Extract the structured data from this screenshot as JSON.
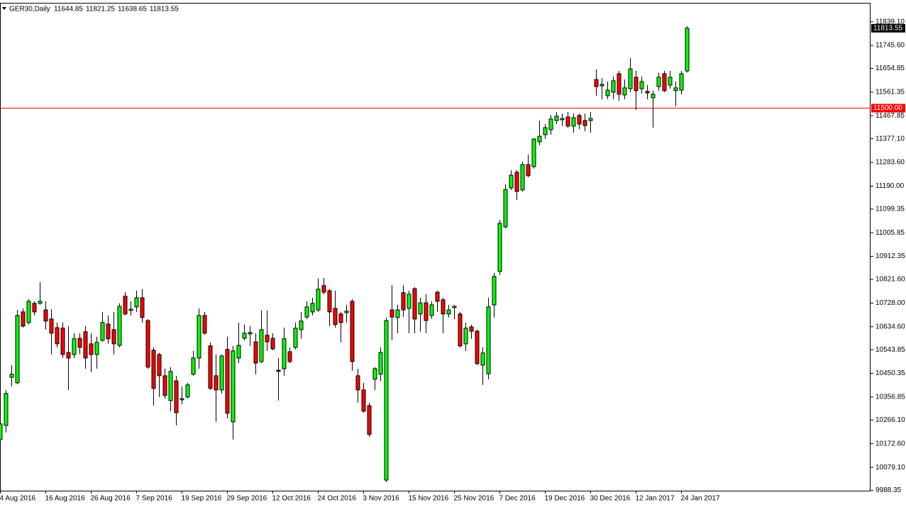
{
  "chart_data": {
    "type": "candlestick",
    "title": "GER30,Daily",
    "categories": [
      "4 Aug 2016",
      null,
      null,
      null,
      null,
      null,
      null,
      null,
      "16 Aug 2016",
      null,
      null,
      null,
      null,
      null,
      null,
      null,
      "26 Aug 2016",
      null,
      null,
      null,
      null,
      null,
      null,
      null,
      "7 Sep 2016",
      null,
      null,
      null,
      null,
      null,
      null,
      null,
      "19 Sep 2016",
      null,
      null,
      null,
      null,
      null,
      null,
      null,
      "29 Sep 2016",
      null,
      null,
      null,
      null,
      null,
      null,
      null,
      "12 Oct 2016",
      null,
      null,
      null,
      null,
      null,
      null,
      null,
      "24 Oct 2016",
      null,
      null,
      null,
      null,
      null,
      null,
      null,
      "3 Nov 2016",
      null,
      null,
      null,
      null,
      null,
      null,
      null,
      "15 Nov 2016",
      null,
      null,
      null,
      null,
      null,
      null,
      null,
      "25 Nov 2016",
      null,
      null,
      null,
      null,
      null,
      null,
      null,
      "7 Dec 2016",
      null,
      null,
      null,
      null,
      null,
      null,
      null,
      "19 Dec 2016",
      null,
      null,
      null,
      null,
      null,
      null,
      null,
      "30 Dec 2016",
      null,
      null,
      null,
      null,
      null,
      null,
      null,
      "12 Jan 2017",
      null,
      null,
      null,
      null,
      null,
      null,
      null,
      "24 Jan 2017",
      null
    ],
    "open": [
      10189,
      10245,
      10435,
      10413,
      10693,
      10651,
      10727,
      10727,
      10701,
      10665,
      10631,
      10629,
      10533,
      10525,
      10589,
      10615,
      10567,
      10525,
      10581,
      10645,
      10623,
      10561,
      10755,
      10699,
      10713,
      10749,
      10659,
      10542,
      10525,
      10441,
      10343,
      10421,
      10346,
      10357,
      10447,
      10511,
      10679,
      10559,
      10441,
      10385,
      10545,
      10259,
      10511,
      10589,
      10606,
      10575,
      10497,
      10601,
      10589,
      10463,
      10469,
      10536,
      10553,
      10623,
      10673,
      10693,
      10701,
      10797,
      10777,
      10707,
      10685,
      10690,
      10735,
      10441,
      10385,
      10323,
      10427,
      10447,
      10029,
      10701,
      10671,
      10769,
      10707,
      10785,
      10685,
      10729,
      10679,
      10771,
      10741,
      10685,
      10710,
      10685,
      10567,
      10634,
      10617,
      10483,
      10449,
      10721,
      10853,
      11029,
      11183,
      11245,
      11175,
      11275,
      11267,
      11365,
      11393,
      11413,
      11449,
      11452,
      11463,
      11427,
      11469,
      11449,
      11449,
      11611,
      11586,
      11547,
      11561,
      11634,
      11550,
      11575,
      11620,
      11575,
      11564,
      11539,
      11583,
      11634,
      11589,
      11567,
      11569,
      11644.85
    ],
    "high": [
      10273,
      10385,
      10483,
      10701,
      10707,
      10743,
      10735,
      10811,
      10735,
      10704,
      10651,
      10651,
      10637,
      10609,
      10609,
      10637,
      10609,
      10595,
      10693,
      10679,
      10693,
      10727,
      10771,
      10735,
      10777,
      10783,
      10665,
      10553,
      10531,
      10469,
      10475,
      10441,
      10399,
      10413,
      10539,
      10707,
      10693,
      10573,
      10525,
      10525,
      10595,
      10559,
      10651,
      10643,
      10637,
      10609,
      10699,
      10699,
      10609,
      10511,
      10631,
      10553,
      10651,
      10693,
      10735,
      10749,
      10825,
      10827,
      10783,
      10777,
      10693,
      10721,
      10743,
      10469,
      10413,
      10335,
      10475,
      10553,
      10671,
      10799,
      10721,
      10799,
      10777,
      10791,
      10749,
      10763,
      10735,
      10777,
      10749,
      10721,
      10721,
      10693,
      10651,
      10643,
      10623,
      10553,
      10749,
      10847,
      11057,
      11197,
      11253,
      11253,
      11287,
      11315,
      11379,
      11449,
      11435,
      11471,
      11483,
      11477,
      11483,
      11477,
      11477,
      11477,
      11483,
      11651,
      11617,
      11603,
      11623,
      11645,
      11611,
      11695,
      11645,
      11623,
      11589,
      11567,
      11637,
      11645,
      11645,
      11603,
      11645,
      11821.25
    ],
    "low": [
      10175,
      10217,
      10399,
      10407,
      10631,
      10643,
      10679,
      10721,
      10623,
      10525,
      10553,
      10511,
      10385,
      10511,
      10525,
      10469,
      10455,
      10469,
      10575,
      10567,
      10525,
      10553,
      10679,
      10679,
      10693,
      10651,
      10469,
      10323,
      10357,
      10351,
      10301,
      10245,
      10329,
      10351,
      10441,
      10469,
      10603,
      10385,
      10259,
      10371,
      10273,
      10189,
      10491,
      10581,
      10559,
      10447,
      10491,
      10539,
      10542,
      10343,
      10441,
      10491,
      10545,
      10587,
      10665,
      10679,
      10693,
      10763,
      10637,
      10631,
      10573,
      10651,
      10461,
      10335,
      10295,
      10200,
      10385,
      10419,
      10021,
      10581,
      10609,
      10673,
      10609,
      10609,
      10615,
      10609,
      10665,
      10693,
      10609,
      10671,
      10665,
      10553,
      10539,
      10587,
      10483,
      10405,
      10427,
      10671,
      10839,
      11023,
      11175,
      11135,
      11169,
      11225,
      11259,
      11351,
      11376,
      11393,
      11435,
      11427,
      11421,
      11401,
      11415,
      11407,
      11401,
      11547,
      11533,
      11533,
      11533,
      11527,
      11533,
      11561,
      11491,
      11555,
      11533,
      11421,
      11567,
      11561,
      11575,
      11505,
      11553,
      11638.65
    ],
    "close": [
      10251,
      10371,
      10447,
      10679,
      10637,
      10735,
      10693,
      10735,
      10657,
      10609,
      10567,
      10525,
      10511,
      10587,
      10553,
      10511,
      10525,
      10573,
      10651,
      10587,
      10567,
      10715,
      10685,
      10704,
      10749,
      10671,
      10475,
      10391,
      10441,
      10363,
      10458,
      10295,
      10351,
      10405,
      10511,
      10679,
      10609,
      10391,
      10385,
      10519,
      10293,
      10539,
      10561,
      10609,
      10612,
      10491,
      10623,
      10575,
      10547,
      10458,
      10587,
      10497,
      10629,
      10657,
      10713,
      10727,
      10783,
      10771,
      10693,
      10643,
      10651,
      10696,
      10497,
      10385,
      10301,
      10209,
      10469,
      10533,
      10659,
      10673,
      10701,
      10701,
      10763,
      10665,
      10729,
      10659,
      10721,
      10735,
      10685,
      10701,
      10715,
      10559,
      10629,
      10617,
      10489,
      10531,
      10713,
      10833,
      11043,
      11177,
      11233,
      11169,
      11275,
      11231,
      11376,
      11387,
      11421,
      11455,
      11466,
      11457,
      11427,
      11460,
      11435,
      11429,
      11457,
      11583,
      11592,
      11569,
      11606,
      11553,
      11578,
      11653,
      11567,
      11603,
      11558,
      11553,
      11620,
      11567,
      11620,
      11578,
      11634,
      11813.55
    ],
    "up_color": "#00ff00",
    "down_color": "#ff0000",
    "ylim": [
      9987,
      11911
    ],
    "yticks": [
      {
        "value": 11839.1,
        "label": "11839.10"
      },
      {
        "value": 11745.6,
        "label": "11745.60"
      },
      11654.85,
      11561.35,
      11467.85,
      {
        "value": 11377.1,
        "label": "11377.10"
      },
      {
        "value": 11283.6,
        "label": "11283.60"
      },
      {
        "value": 11190,
        "label": "11190.00"
      },
      11099.35,
      11005.85,
      10912.35,
      {
        "value": 10821.6,
        "label": "10821.60"
      },
      {
        "value": 10728,
        "label": "10728.00"
      },
      {
        "value": 10634.6,
        "label": "10634.60"
      },
      10543.85,
      10450.35,
      10356.85,
      {
        "value": 10266.1,
        "label": "10266.10"
      },
      {
        "value": 10172.6,
        "label": "10172.60"
      },
      {
        "value": 10079.1,
        "label": "10079.10"
      },
      9988.35
    ],
    "hline": {
      "value": 11500,
      "label": "11500.00",
      "color": "#ff0000"
    }
  }
}
